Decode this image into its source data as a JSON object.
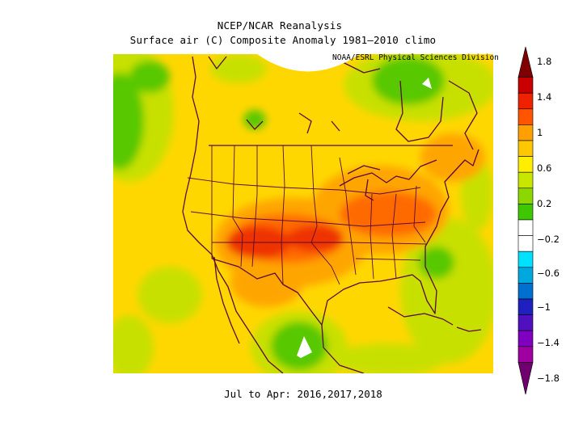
{
  "header": {
    "title_line1": "NCEP/NCAR Reanalysis",
    "title_line2": "Surface air (C) Composite Anomaly 1981–2010 climo",
    "credit": "NOAA/ESRL Physical Sciences Division"
  },
  "footer": {
    "period": "Jul to Apr: 2016,2017,2018"
  },
  "colorbar": {
    "labels": [
      "1.8",
      "1.4",
      "1",
      "0.6",
      "0.2",
      "−0.2",
      "−0.6",
      "−1",
      "−1.4",
      "−1.8"
    ],
    "colors": [
      "#800000",
      "#c80000",
      "#ee2200",
      "#ff5500",
      "#ffa000",
      "#ffc800",
      "#ffee00",
      "#c8e600",
      "#8cd700",
      "#3ec800",
      "#ffffff",
      "#ffffff",
      "#00e0ff",
      "#00a8e0",
      "#0070d0",
      "#2020c0",
      "#5010c0",
      "#8000c0",
      "#a000a0",
      "#700070"
    ]
  },
  "map_colors": {
    "yellow": "#ffd700",
    "yellow_green": "#c8e000",
    "green": "#58c800",
    "orange": "#ffa500",
    "orange_red": "#ff6a00",
    "red": "#ee3300",
    "white": "#ffffff",
    "border": "#5a0a32"
  }
}
